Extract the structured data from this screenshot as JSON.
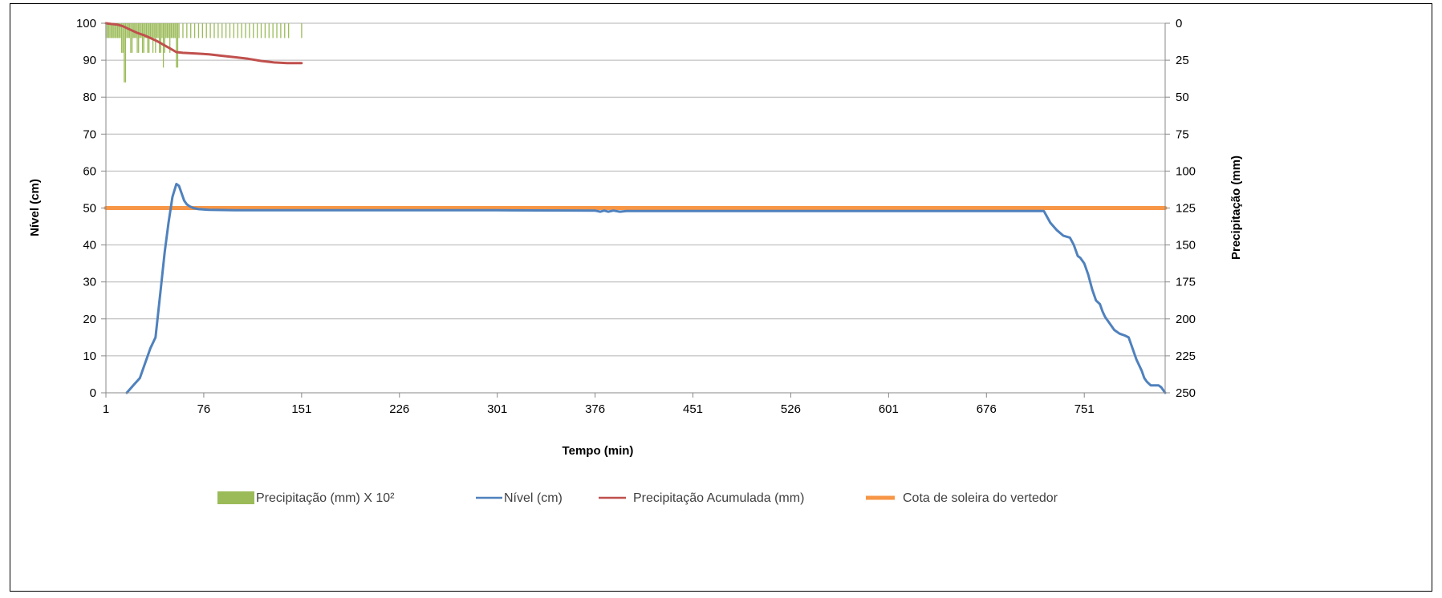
{
  "chart_data": {
    "type": "line",
    "xlabel": "Tempo (min)",
    "ylabel_left": "Nível (cm)",
    "ylabel_right": "Precipitação  (mm)",
    "x_ticks": [
      "1",
      "76",
      "151",
      "226",
      "301",
      "376",
      "451",
      "526",
      "601",
      "676",
      "751"
    ],
    "x_range": [
      1,
      813
    ],
    "y_left_range": [
      0,
      100
    ],
    "y_left_ticks": [
      "0",
      "10",
      "20",
      "30",
      "40",
      "50",
      "60",
      "70",
      "80",
      "90",
      "100"
    ],
    "y_right_range": [
      250,
      0
    ],
    "y_right_ticks": [
      "0",
      "25",
      "50",
      "75",
      "100",
      "125",
      "150",
      "175",
      "200",
      "225",
      "250"
    ],
    "grid": true,
    "legend_position": "bottom",
    "colors": {
      "precip_bars": "#9bbb59",
      "nivel": "#4f81bd",
      "acumulada": "#c0504d",
      "cota": "#f79646"
    },
    "legend": [
      {
        "label": "Precipitação (mm) X 10²",
        "color": "#9bbb59",
        "kind": "bar"
      },
      {
        "label": "Nível (cm)",
        "color": "#4f81bd",
        "kind": "line"
      },
      {
        "label": "Precipitação Acumulada (mm)",
        "color": "#c0504d",
        "kind": "line"
      },
      {
        "label": "Cota de soleira do vertedor",
        "color": "#f79646",
        "kind": "thickline"
      }
    ],
    "series": [
      {
        "name": "Nível (cm)",
        "axis": "left",
        "x": [
          17,
          22,
          27,
          31,
          35,
          39,
          43,
          46,
          49,
          52,
          55,
          57,
          59,
          61,
          63,
          65,
          68,
          72,
          80,
          100,
          200,
          300,
          376,
          380,
          383,
          386,
          390,
          395,
          400,
          500,
          600,
          700,
          720,
          725,
          730,
          735,
          740,
          743,
          746,
          748,
          751,
          754,
          757,
          760,
          763,
          765,
          767,
          770,
          774,
          778,
          782,
          785,
          788,
          791,
          795,
          797,
          799,
          802,
          805,
          808,
          810,
          812,
          813
        ],
        "y": [
          0,
          2,
          4,
          8,
          12,
          15,
          28,
          38,
          46,
          53,
          56.5,
          56,
          54,
          52,
          51,
          50.5,
          50,
          49.7,
          49.5,
          49.4,
          49.4,
          49.4,
          49.3,
          49,
          49.3,
          49,
          49.3,
          49,
          49.2,
          49.2,
          49.2,
          49.2,
          49.2,
          46,
          44,
          42.5,
          42,
          40,
          37,
          36.5,
          35,
          32,
          28,
          25,
          24,
          22,
          20.5,
          19,
          17,
          16,
          15.5,
          15,
          12,
          9,
          6,
          4,
          3,
          2,
          2,
          2,
          1.5,
          0.5,
          0
        ]
      },
      {
        "name": "Precipitação Acumulada (mm)",
        "axis": "right",
        "x": [
          1,
          5,
          10,
          14,
          20,
          25,
          30,
          35,
          40,
          45,
          50,
          55,
          60,
          70,
          80,
          90,
          100,
          110,
          120,
          130,
          140,
          151
        ],
        "y": [
          0,
          0.5,
          1,
          2,
          4.5,
          6.5,
          8,
          10,
          12,
          14.5,
          17,
          19.5,
          20,
          20.5,
          21,
          22,
          23,
          24,
          25.5,
          26.5,
          27,
          27
        ]
      },
      {
        "name": "Cota de soleira do vertedor",
        "axis": "left",
        "x": [
          1,
          813
        ],
        "y": [
          50,
          50
        ]
      },
      {
        "name": "Precipitação (mm) X 10²",
        "axis": "right",
        "type": "bar",
        "x": [
          1,
          2,
          3,
          4,
          5,
          6,
          7,
          8,
          9,
          10,
          11,
          12,
          13,
          14,
          15,
          16,
          17,
          18,
          19,
          20,
          21,
          22,
          23,
          24,
          25,
          26,
          27,
          28,
          29,
          30,
          31,
          32,
          33,
          34,
          35,
          36,
          37,
          38,
          39,
          40,
          41,
          42,
          43,
          44,
          45,
          46,
          47,
          48,
          49,
          50,
          51,
          52,
          53,
          54,
          55,
          56,
          57,
          60,
          63,
          66,
          69,
          72,
          75,
          78,
          81,
          84,
          87,
          90,
          93,
          96,
          99,
          102,
          105,
          108,
          111,
          114,
          117,
          120,
          123,
          126,
          129,
          132,
          135,
          138,
          141,
          151
        ],
        "y": [
          20,
          20,
          20,
          20,
          20,
          20,
          20,
          20,
          20,
          20,
          20,
          20,
          40,
          40,
          80,
          80,
          20,
          20,
          20,
          40,
          40,
          20,
          20,
          20,
          40,
          40,
          20,
          20,
          40,
          40,
          20,
          20,
          40,
          40,
          20,
          20,
          40,
          20,
          40,
          20,
          20,
          40,
          40,
          20,
          60,
          40,
          20,
          20,
          20,
          40,
          20,
          20,
          20,
          20,
          60,
          60,
          20,
          20,
          20,
          20,
          20,
          20,
          20,
          20,
          20,
          20,
          20,
          20,
          20,
          20,
          20,
          20,
          20,
          20,
          20,
          20,
          20,
          20,
          20,
          20,
          20,
          20,
          20,
          20,
          20,
          20
        ]
      }
    ]
  }
}
